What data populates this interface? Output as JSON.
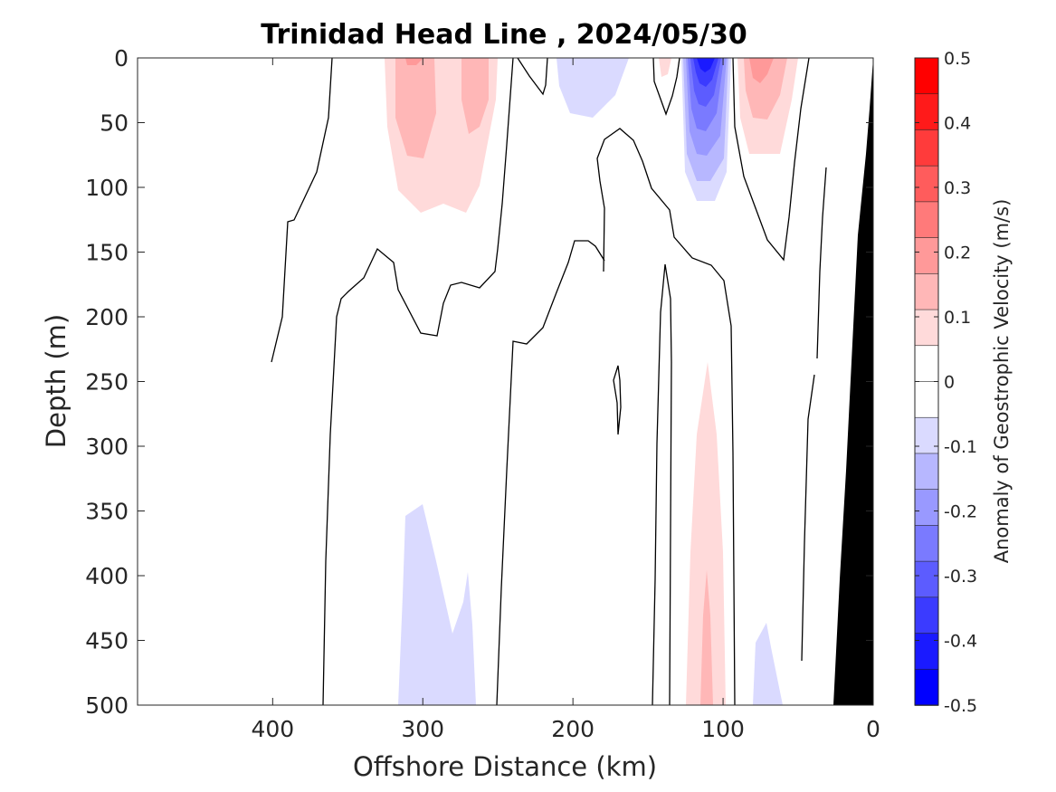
{
  "chart_data": {
    "type": "contour",
    "title": "Trinidad Head Line , 2024/05/30",
    "xlabel": "Offshore Distance (km)",
    "ylabel": "Depth (m)",
    "xlim": [
      490,
      0
    ],
    "ylim": [
      0,
      500
    ],
    "x_ticks": [
      400,
      300,
      200,
      100,
      0
    ],
    "x_tick_labels": [
      "400",
      "300",
      "200",
      "100",
      "0"
    ],
    "y_ticks": [
      0,
      50,
      100,
      150,
      200,
      250,
      300,
      350,
      400,
      450,
      500
    ],
    "y_tick_labels": [
      "0",
      "50",
      "100",
      "150",
      "200",
      "250",
      "300",
      "350",
      "400",
      "450",
      "500"
    ],
    "colorbar": {
      "label": "Anomaly of Geostrophic Velocity (m/s)",
      "range": [
        -0.5,
        0.5
      ],
      "ticks": [
        0.5,
        0.4,
        0.3,
        0.2,
        0.1,
        0,
        -0.1,
        -0.2,
        -0.3,
        -0.4,
        -0.5
      ],
      "tick_labels": [
        "0.5",
        "0.4",
        "0.3",
        "0.2",
        "0.1",
        "0",
        "-0.1",
        "-0.2",
        "-0.3",
        "-0.4",
        "-0.5"
      ],
      "levels_high_to_low": [
        "#ff0000",
        "#ff1a1a",
        "#ff3b3b",
        "#ff5c5c",
        "#ff7a7a",
        "#ff9999",
        "#ffb7b7",
        "#ffdada",
        "#ffffff",
        "#ffffff",
        "#dadaff",
        "#b7b7ff",
        "#9999ff",
        "#7a7aff",
        "#5c5cff",
        "#3b3bff",
        "#1a1aff",
        "#0000ff"
      ]
    },
    "features": [
      {
        "kind": "positive",
        "value": 0.05,
        "x": [
          323,
          258
        ],
        "depth": [
          0,
          120
        ]
      },
      {
        "kind": "negative",
        "value": -0.05,
        "x": [
          210,
          185
        ],
        "depth": [
          0,
          45
        ]
      },
      {
        "kind": "negative",
        "value": -0.3,
        "x": [
          125,
          95
        ],
        "depth": [
          0,
          110
        ]
      },
      {
        "kind": "positive",
        "value": 0.15,
        "x": [
          90,
          50
        ],
        "depth": [
          0,
          80
        ]
      },
      {
        "kind": "negative",
        "value": -0.05,
        "x": [
          317,
          265
        ],
        "depth": [
          345,
          500
        ]
      },
      {
        "kind": "positive",
        "value": 0.1,
        "x": [
          125,
          100
        ],
        "depth": [
          235,
          500
        ]
      },
      {
        "kind": "negative",
        "value": -0.05,
        "x": [
          80,
          60
        ],
        "depth": [
          435,
          500
        ]
      }
    ],
    "bathymetry_color": "#000000",
    "contour_line_color": "#000000"
  }
}
